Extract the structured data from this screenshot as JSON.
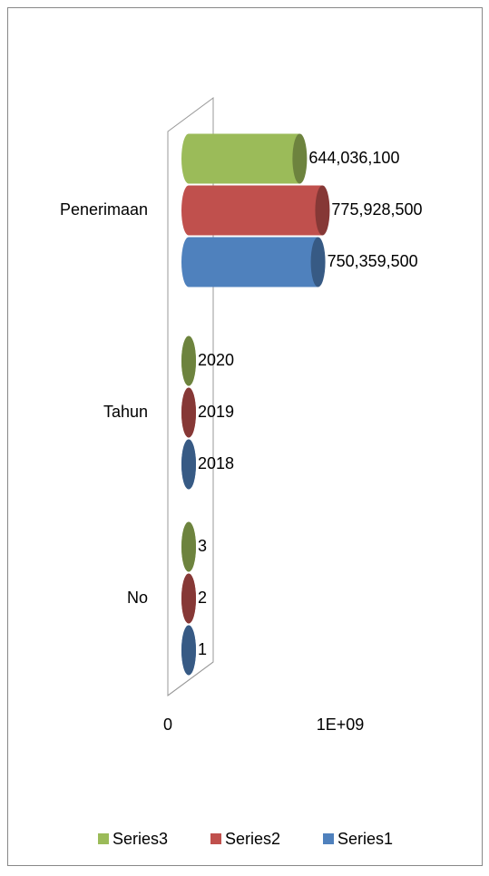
{
  "chart_data": {
    "type": "bar3d_horizontal",
    "categories": [
      "No",
      "Tahun",
      "Penerimaan"
    ],
    "series": [
      {
        "name": "Series1",
        "color": "#4f81bd",
        "values": [
          1,
          2018,
          750359500
        ],
        "value_labels": [
          "1",
          "2018",
          "750,359,500"
        ]
      },
      {
        "name": "Series2",
        "color": "#c0504d",
        "values": [
          2,
          2019,
          775928500
        ],
        "value_labels": [
          "2",
          "2019",
          "775,928,500"
        ]
      },
      {
        "name": "Series3",
        "color": "#9bbb59",
        "values": [
          3,
          2020,
          644036100
        ],
        "value_labels": [
          "3",
          "2020",
          "644,036,100"
        ]
      }
    ],
    "xlim": [
      0,
      1000000000
    ],
    "xticks": [
      0,
      {
        "value": 1000000000,
        "label": "1E+09"
      }
    ],
    "legend": "bottom"
  }
}
